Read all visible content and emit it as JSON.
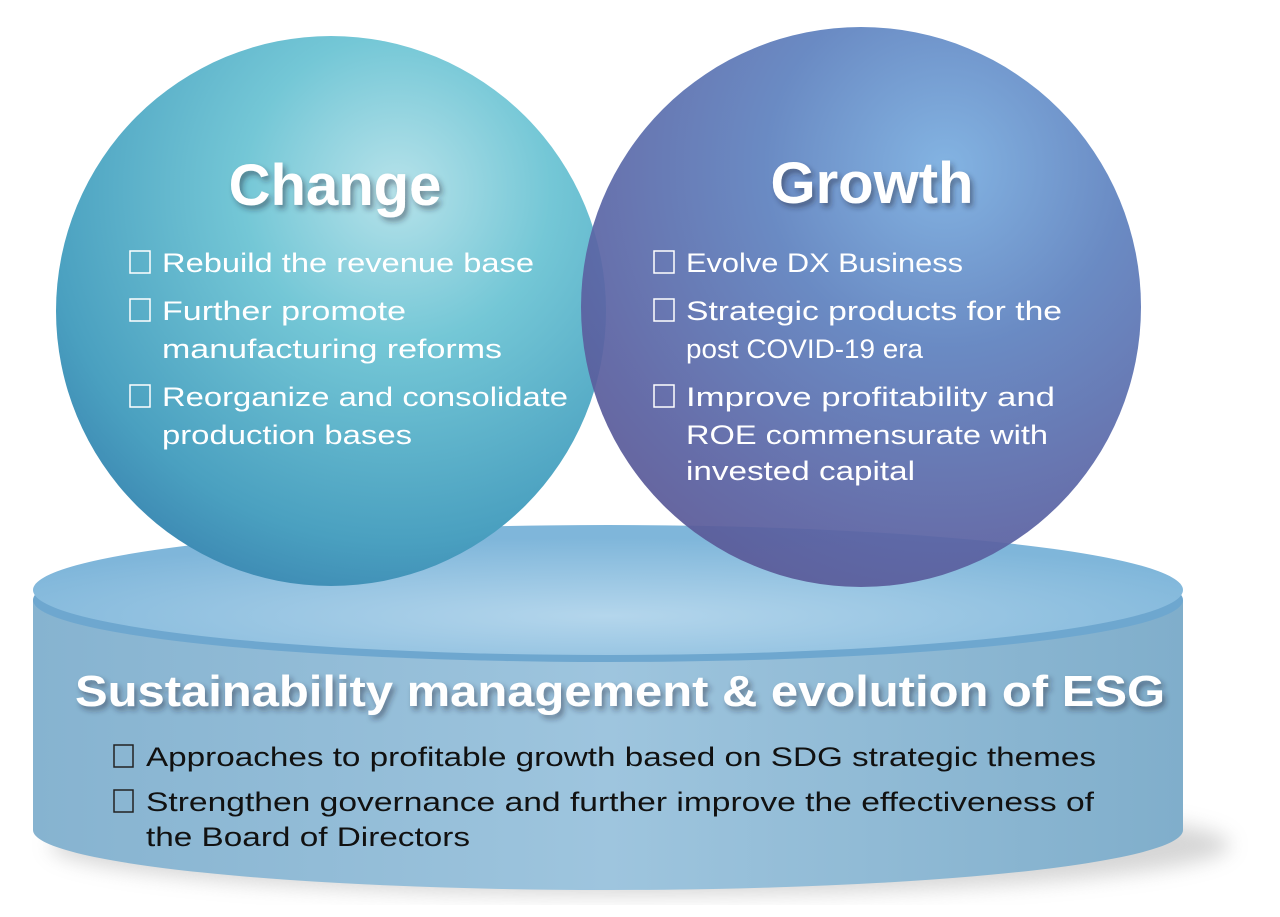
{
  "change": {
    "title": "Change",
    "items": [
      {
        "lines": [
          "Rebuild the revenue base"
        ]
      },
      {
        "lines": [
          "Further promote",
          "manufacturing reforms"
        ]
      },
      {
        "lines": [
          "Reorganize and consolidate",
          "production bases"
        ]
      }
    ]
  },
  "growth": {
    "title": "Growth",
    "items": [
      {
        "lines": [
          "Evolve DX Business"
        ]
      },
      {
        "lines": [
          "Strategic products for the",
          "post COVID-19 era"
        ]
      },
      {
        "lines": [
          "Improve profitability and",
          "ROE commensurate with",
          "invested capital"
        ]
      }
    ]
  },
  "foundation": {
    "title": "Sustainability management & evolution of ESG",
    "items": [
      {
        "lines": [
          "Approaches to profitable growth based on SDG strategic themes"
        ]
      },
      {
        "lines": [
          "Strengthen governance and further improve the effectiveness of",
          "the Board of Directors"
        ]
      }
    ]
  },
  "colors": {
    "change_sphere": "#5fc0d0",
    "growth_sphere": "#5a6aa8",
    "cylinder": "#8fb8d4"
  }
}
